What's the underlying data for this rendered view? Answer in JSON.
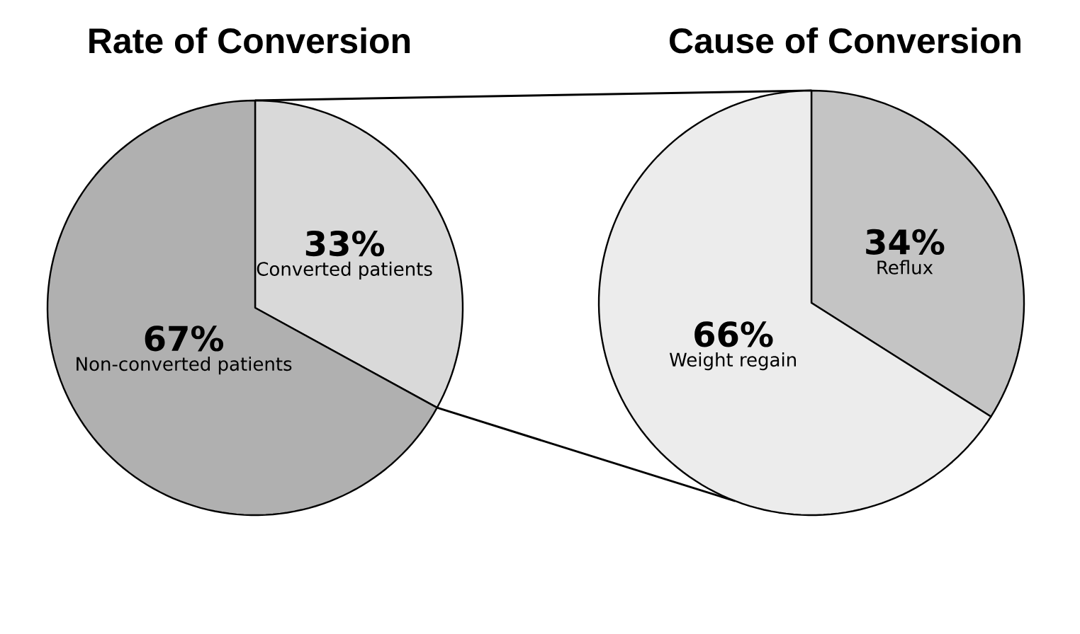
{
  "chart_data": [
    {
      "type": "pie",
      "title": "Rate of Conversion",
      "categories": [
        "Converted patients",
        "Non-converted patients"
      ],
      "values": [
        33,
        67
      ],
      "value_labels": [
        "33%",
        "67%"
      ],
      "colors": [
        "#d9d9d9",
        "#b0b0b0"
      ]
    },
    {
      "type": "pie",
      "title": "Cause of Conversion",
      "categories": [
        "Reflux",
        "Weight regain"
      ],
      "values": [
        34,
        66
      ],
      "value_labels": [
        "34%",
        "66%"
      ],
      "colors": [
        "#c4c4c4",
        "#ececec"
      ]
    }
  ]
}
